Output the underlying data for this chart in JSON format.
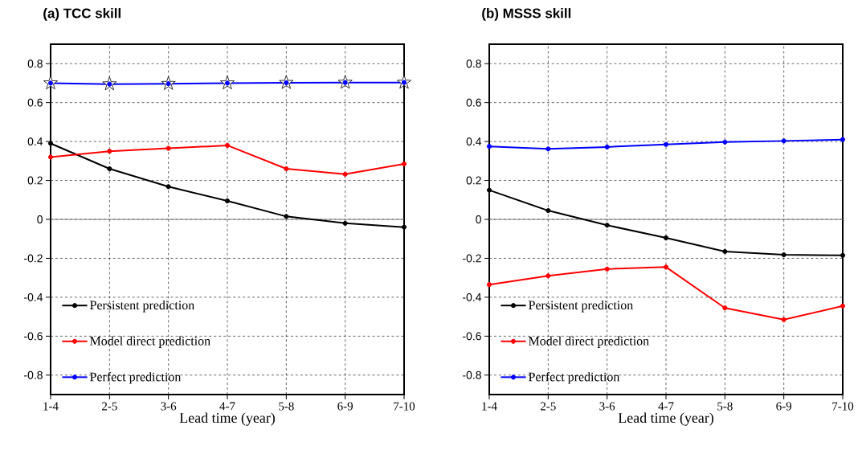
{
  "chart_data": [
    {
      "type": "line",
      "title": "(a) TCC skill",
      "xlabel": "Lead time (year)",
      "categories": [
        "1-4",
        "2-5",
        "3-6",
        "4-7",
        "5-8",
        "6-9",
        "7-10"
      ],
      "series": [
        {
          "name": "Persistent prediction",
          "color": "#000000",
          "values": [
            0.39,
            0.26,
            0.168,
            0.095,
            0.015,
            -0.02,
            -0.04
          ]
        },
        {
          "name": "Model direct prediction",
          "color": "#ff0000",
          "values": [
            0.32,
            0.35,
            0.365,
            0.38,
            0.26,
            0.232,
            0.285
          ]
        },
        {
          "type": "scatter",
          "marker": "star",
          "color": "#000000",
          "values": [
            0.7,
            0.695,
            0.697,
            0.7,
            0.702,
            0.703,
            0.703
          ]
        },
        {
          "name": "Perfect prediction",
          "color": "#0000ff",
          "values": [
            0.7,
            0.695,
            0.697,
            0.7,
            0.702,
            0.703,
            0.703
          ]
        }
      ],
      "ylim": [
        -0.9,
        0.9
      ],
      "yticks": [
        -0.8,
        -0.6,
        -0.4,
        -0.2,
        0,
        0.2,
        0.4,
        0.6,
        0.8
      ],
      "grid": true,
      "legend": "bottom left",
      "marker": "circle",
      "line_style": "solid",
      "ref_lines": [
        {
          "axis": "y",
          "value": 0,
          "color": "#808080"
        }
      ]
    },
    {
      "type": "line",
      "title": "(b) MSSS skill",
      "xlabel": "Lead time (year)",
      "categories": [
        "1-4",
        "2-5",
        "3-6",
        "4-7",
        "5-8",
        "6-9",
        "7-10"
      ],
      "series": [
        {
          "name": "Persistent prediction",
          "color": "#000000",
          "values": [
            0.15,
            0.045,
            -0.03,
            -0.095,
            -0.165,
            -0.182,
            -0.185
          ]
        },
        {
          "name": "Model direct prediction",
          "color": "#ff0000",
          "values": [
            -0.335,
            -0.29,
            -0.255,
            -0.245,
            -0.455,
            -0.515,
            -0.445
          ]
        },
        {
          "name": "Perfect prediction",
          "color": "#0000ff",
          "values": [
            0.375,
            0.362,
            0.372,
            0.385,
            0.397,
            0.403,
            0.41
          ]
        }
      ],
      "ylim": [
        -0.9,
        0.9
      ],
      "yticks": [
        -0.8,
        -0.6,
        -0.4,
        -0.2,
        0,
        0.2,
        0.4,
        0.6,
        0.8
      ],
      "grid": true,
      "legend": "bottom left",
      "marker": "circle",
      "line_style": "solid",
      "ref_lines": [
        {
          "axis": "y",
          "value": 0,
          "color": "#808080"
        }
      ]
    }
  ]
}
